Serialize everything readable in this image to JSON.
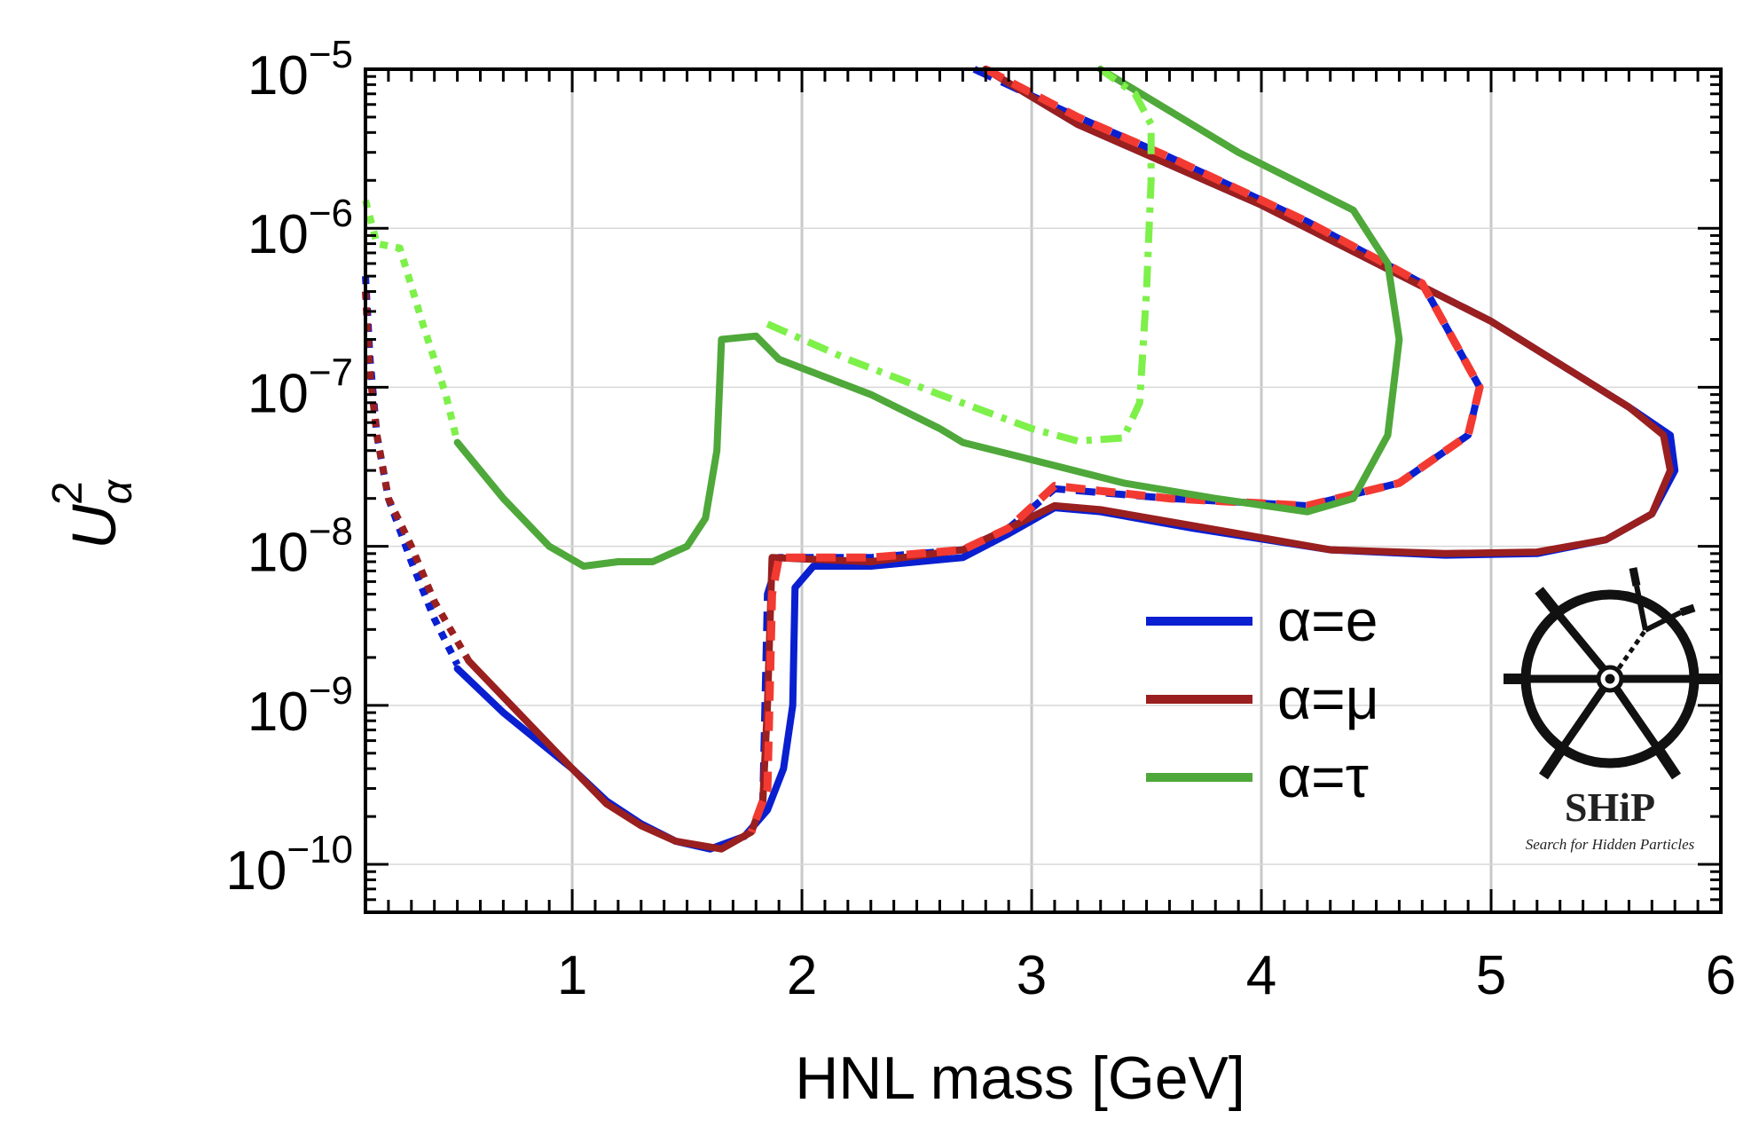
{
  "chart_data": {
    "type": "line",
    "xlabel": "HNL mass [GeV]",
    "ylabel": "U",
    "ylabel_sub": "α",
    "ylabel_sup": "2",
    "yscale": "log",
    "xlim": [
      0.1,
      6.0
    ],
    "ylim": [
      5e-11,
      1e-05
    ],
    "x_ticks": [
      "1",
      "2",
      "3",
      "4",
      "5",
      "6"
    ],
    "y_ticks": [
      {
        "base": "10",
        "exp": "−5"
      },
      {
        "base": "10",
        "exp": "−6"
      },
      {
        "base": "10",
        "exp": "−7"
      },
      {
        "base": "10",
        "exp": "−8"
      },
      {
        "base": "10",
        "exp": "−9"
      },
      {
        "base": "10",
        "exp": "−10"
      }
    ],
    "grid": "vertical at integer masses, horizontal at decades",
    "legend_position": "lower-right",
    "legend": [
      {
        "label": "α=e",
        "color": "#0a1fd0"
      },
      {
        "label": "α=μ",
        "color": "#9a1f1f"
      },
      {
        "label": "α=τ",
        "color": "#4fa83a"
      }
    ],
    "logo": {
      "title": "SHiP",
      "subtitle": "Search for Hidden Particles"
    },
    "series": [
      {
        "name": "α=e",
        "color": "#0a1fd0",
        "style": "dotted",
        "width": 8,
        "points": [
          [
            0.1,
            5e-07
          ],
          [
            0.12,
            1.5e-07
          ],
          [
            0.15,
            5e-08
          ],
          [
            0.2,
            2e-08
          ],
          [
            0.3,
            8e-09
          ],
          [
            0.4,
            3.5e-09
          ],
          [
            0.5,
            1.8e-09
          ]
        ]
      },
      {
        "name": "α=e",
        "color": "#0a1fd0",
        "style": "solid",
        "width": 8,
        "points": [
          [
            0.5,
            1.7e-09
          ],
          [
            0.7,
            9e-10
          ],
          [
            1.0,
            4e-10
          ],
          [
            1.15,
            2.5e-10
          ],
          [
            1.3,
            1.8e-10
          ],
          [
            1.45,
            1.4e-10
          ],
          [
            1.6,
            1.25e-10
          ],
          [
            1.75,
            1.5e-10
          ],
          [
            1.85,
            2.2e-10
          ],
          [
            1.92,
            4e-10
          ],
          [
            1.96,
            1e-09
          ],
          [
            1.97,
            5.5e-09
          ],
          [
            2.05,
            7.5e-09
          ],
          [
            2.3,
            7.5e-09
          ],
          [
            2.7,
            8.5e-09
          ],
          [
            2.9,
            1.2e-08
          ],
          [
            3.1,
            1.75e-08
          ],
          [
            3.3,
            1.65e-08
          ],
          [
            3.7,
            1.3e-08
          ],
          [
            4.3,
            9.5e-09
          ],
          [
            4.8,
            8.8e-09
          ],
          [
            5.2,
            9e-09
          ],
          [
            5.5,
            1.1e-08
          ],
          [
            5.7,
            1.6e-08
          ],
          [
            5.8,
            3e-08
          ],
          [
            5.78,
            5e-08
          ],
          [
            5.6,
            7.5e-08
          ],
          [
            5.0,
            2.6e-07
          ],
          [
            4.0,
            1.4e-06
          ],
          [
            3.2,
            4.5e-06
          ],
          [
            2.8,
            1e-05
          ]
        ]
      },
      {
        "name": "α=e",
        "color": "#0a1fd0",
        "style": "dashed",
        "width": 8,
        "points": [
          [
            2.75,
            1e-05
          ],
          [
            3.2,
            5e-06
          ],
          [
            3.6,
            2.8e-06
          ],
          [
            4.2,
            1.1e-06
          ],
          [
            4.7,
            4.5e-07
          ],
          [
            4.95,
            1e-07
          ],
          [
            4.9,
            5e-08
          ],
          [
            4.6,
            2.5e-08
          ],
          [
            4.2,
            1.8e-08
          ],
          [
            3.6,
            2e-08
          ],
          [
            3.1,
            2.3e-08
          ],
          [
            2.9,
            1.3e-08
          ],
          [
            2.7,
            9.5e-09
          ],
          [
            2.3,
            8.5e-09
          ],
          [
            1.9,
            8.5e-09
          ],
          [
            1.85,
            5e-09
          ],
          [
            1.83,
            2.5e-10
          ],
          [
            1.78,
            1.6e-10
          ]
        ]
      },
      {
        "name": "α=μ",
        "color": "#9a1f1f",
        "style": "dotted",
        "width": 8,
        "points": [
          [
            0.1,
            4e-07
          ],
          [
            0.12,
            1.2e-07
          ],
          [
            0.15,
            5e-08
          ],
          [
            0.2,
            2e-08
          ],
          [
            0.3,
            1e-08
          ],
          [
            0.4,
            4.5e-09
          ],
          [
            0.55,
            1.9e-09
          ]
        ]
      },
      {
        "name": "α=μ",
        "color": "#9a1f1f",
        "style": "solid",
        "width": 8,
        "points": [
          [
            0.55,
            1.9e-09
          ],
          [
            0.75,
            9.5e-10
          ],
          [
            1.0,
            4e-10
          ],
          [
            1.15,
            2.4e-10
          ],
          [
            1.3,
            1.75e-10
          ],
          [
            1.45,
            1.4e-10
          ],
          [
            1.65,
            1.25e-10
          ],
          [
            1.78,
            1.6e-10
          ],
          [
            1.83,
            2.5e-10
          ],
          [
            1.85,
            1e-09
          ],
          [
            1.87,
            8.5e-09
          ],
          [
            2.3,
            8e-09
          ],
          [
            2.7,
            9.5e-09
          ],
          [
            2.9,
            1.3e-08
          ],
          [
            3.1,
            1.8e-08
          ],
          [
            3.3,
            1.7e-08
          ],
          [
            3.7,
            1.35e-08
          ],
          [
            4.3,
            9.5e-09
          ],
          [
            4.8,
            9e-09
          ],
          [
            5.2,
            9.2e-09
          ],
          [
            5.5,
            1.1e-08
          ],
          [
            5.7,
            1.6e-08
          ],
          [
            5.78,
            3e-08
          ],
          [
            5.75,
            5e-08
          ],
          [
            5.6,
            7.5e-08
          ],
          [
            5.0,
            2.6e-07
          ],
          [
            4.0,
            1.4e-06
          ],
          [
            3.2,
            4.5e-06
          ],
          [
            2.8,
            1e-05
          ]
        ]
      },
      {
        "name": "α=μ",
        "color": "#f23a32",
        "style": "dashed",
        "width": 9,
        "points": [
          [
            2.8,
            1e-05
          ],
          [
            3.2,
            5e-06
          ],
          [
            3.6,
            2.8e-06
          ],
          [
            4.2,
            1.1e-06
          ],
          [
            4.7,
            4.5e-07
          ],
          [
            4.95,
            1e-07
          ],
          [
            4.9,
            5e-08
          ],
          [
            4.6,
            2.5e-08
          ],
          [
            4.2,
            1.8e-08
          ],
          [
            3.6,
            2e-08
          ],
          [
            3.1,
            2.4e-08
          ],
          [
            2.9,
            1.3e-08
          ],
          [
            2.7,
            9.5e-09
          ],
          [
            2.3,
            8.5e-09
          ],
          [
            1.9,
            8.5e-09
          ],
          [
            1.87,
            5e-09
          ],
          [
            1.85,
            3e-10
          ],
          [
            1.78,
            1.6e-10
          ]
        ]
      },
      {
        "name": "α=τ",
        "color": "#7ef04a",
        "style": "dotted",
        "width": 8,
        "points": [
          [
            0.1,
            1.5e-06
          ],
          [
            0.15,
            8e-07
          ],
          [
            0.25,
            7.5e-07
          ],
          [
            0.35,
            2.5e-07
          ],
          [
            0.45,
            9e-08
          ],
          [
            0.5,
            4.5e-08
          ]
        ]
      },
      {
        "name": "α=τ",
        "color": "#4fa83a",
        "style": "solid",
        "width": 8,
        "points": [
          [
            0.5,
            4.5e-08
          ],
          [
            0.7,
            2e-08
          ],
          [
            0.9,
            1e-08
          ],
          [
            1.05,
            7.5e-09
          ],
          [
            1.2,
            8e-09
          ],
          [
            1.35,
            8e-09
          ],
          [
            1.5,
            1e-08
          ],
          [
            1.58,
            1.5e-08
          ],
          [
            1.63,
            4e-08
          ],
          [
            1.65,
            2e-07
          ],
          [
            1.8,
            2.1e-07
          ],
          [
            1.9,
            1.5e-07
          ],
          [
            2.3,
            9e-08
          ],
          [
            2.6,
            5.5e-08
          ],
          [
            2.7,
            4.5e-08
          ],
          [
            3.0,
            3.5e-08
          ],
          [
            3.4,
            2.5e-08
          ],
          [
            3.8,
            2e-08
          ],
          [
            4.2,
            1.65e-08
          ],
          [
            4.4,
            2e-08
          ],
          [
            4.55,
            5e-08
          ],
          [
            4.6,
            2e-07
          ],
          [
            4.55,
            6e-07
          ],
          [
            4.4,
            1.3e-06
          ],
          [
            3.9,
            3e-06
          ],
          [
            3.3,
            1e-05
          ]
        ]
      },
      {
        "name": "α=τ",
        "color": "#7ef04a",
        "style": "dashdot",
        "width": 8,
        "points": [
          [
            1.85,
            2.5e-07
          ],
          [
            2.2,
            1.5e-07
          ],
          [
            2.6,
            9e-08
          ],
          [
            3.0,
            5.5e-08
          ],
          [
            3.2,
            4.6e-08
          ],
          [
            3.4,
            4.8e-08
          ],
          [
            3.47,
            8e-08
          ],
          [
            3.5,
            4e-07
          ],
          [
            3.52,
            2e-06
          ],
          [
            3.52,
            4.5e-06
          ],
          [
            3.45,
            7e-06
          ],
          [
            3.3,
            1e-05
          ]
        ]
      }
    ]
  }
}
